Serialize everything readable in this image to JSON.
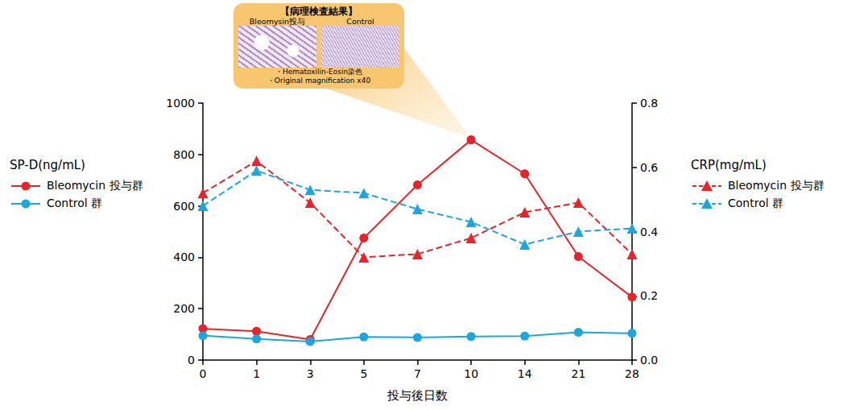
{
  "chart_data": {
    "type": "line",
    "xlabel": "投与後日数",
    "ylabel": "SP-D(ng/mL)",
    "y2label": "CRP(mg/mL)",
    "categories": [
      "0",
      "1",
      "3",
      "5",
      "7",
      "10",
      "14",
      "21",
      "28"
    ],
    "ylim": [
      0,
      1000
    ],
    "yticks": [
      0,
      200,
      400,
      600,
      800,
      1000
    ],
    "y2lim": [
      0,
      0.8
    ],
    "y2ticks": [
      {
        "value": 0,
        "label": "0.0"
      },
      0.2,
      0.4,
      0.6,
      0.8
    ],
    "grid": false,
    "legend": "outside",
    "series": [
      {
        "name": "Bleomycin 投与群",
        "axis": "y",
        "color": "#e8232a",
        "marker": "circle",
        "line_style": "solid",
        "values": [
          122,
          112,
          80,
          475,
          682,
          857,
          725,
          403,
          245
        ]
      },
      {
        "name": "Control 群",
        "axis": "y",
        "color": "#1ba6df",
        "marker": "circle",
        "line_style": "solid",
        "values": [
          95,
          82,
          72,
          90,
          88,
          92,
          93,
          108,
          104
        ]
      },
      {
        "name": "Bleomycin 投与群",
        "axis": "y2",
        "color": "#e8232a",
        "marker": "triangle",
        "line_style": "dashed",
        "values": [
          0.52,
          0.62,
          0.49,
          0.32,
          0.33,
          0.38,
          0.46,
          0.49,
          0.33
        ]
      },
      {
        "name": "Control 群",
        "axis": "y2",
        "color": "#1ba6df",
        "marker": "triangle",
        "line_style": "dashed",
        "values": [
          0.48,
          0.59,
          0.53,
          0.52,
          0.47,
          0.43,
          0.36,
          0.4,
          0.41
        ]
      }
    ],
    "annotation": {
      "title": "【病理検査結果】",
      "panels": [
        "Bleomysin投与",
        "Control"
      ],
      "notes": [
        "・Hematoxilin-Eosin染色",
        "・Original magnification x40"
      ],
      "category": "10"
    }
  }
}
